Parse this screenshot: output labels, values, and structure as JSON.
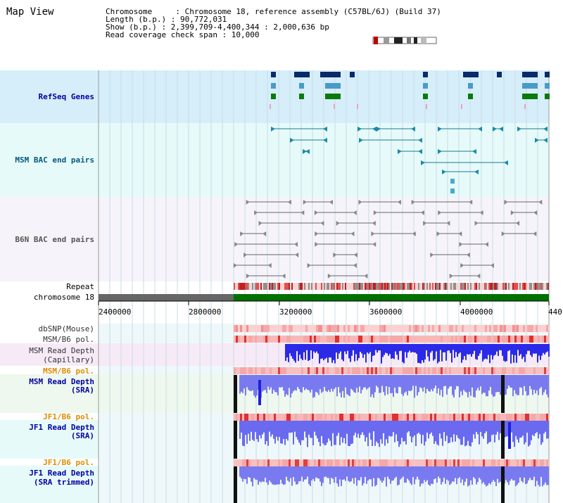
{
  "title": "Map View",
  "info": {
    "chromosome": "Chromosome     : Chromosome 18, reference assembly (C57BL/6J) (Build 37)",
    "length": "Length (b.p.) : 90,772,031",
    "show": "Show (b.p.) : 2,399,709-4,400,344 : 2,000,636 bp",
    "span": "Read coverage check span : 10,000"
  },
  "tracks": {
    "refseq": "RefSeq Genes",
    "msm_bac": "MSM BAC end pairs",
    "b6n_bac": "B6N BAC end pairs",
    "repeat": "Repeat",
    "chromosome": "chromosome 18",
    "dbsnp": "dbSNP(Mouse)",
    "msm_b6_pol_1": "MSM/B6 pol.",
    "msm_read_cap_1": "MSM Read Depth",
    "msm_read_cap_2": "(Capillary)",
    "msm_b6_pol_2": "MSM/B6 pol.",
    "msm_read_sra_1": "MSM Read Depth",
    "msm_read_sra_2": "(SRA)",
    "jf1_b6_pol_1": "JF1/B6 pol.",
    "jf1_read_sra_1": "JF1 Read Depth",
    "jf1_read_sra_2": "(SRA)",
    "jf1_b6_pol_2": "JF1/B6 pol.",
    "jf1_read_trim_1": "JF1 Read Depth",
    "jf1_read_trim_2": "(SRA trimmed)"
  },
  "axis": {
    "ticks": [
      "2400000",
      "2800000",
      "3200000",
      "3600000",
      "4000000",
      "440"
    ]
  },
  "colors": {
    "refseq_bg": "#d6eefa",
    "msm_bg": "#e6fafa",
    "b6n_bg": "#f6f4fa",
    "chromosome_bar": "#007000",
    "depth_blue": "#2020e0",
    "pol_red": "#f08080"
  }
}
